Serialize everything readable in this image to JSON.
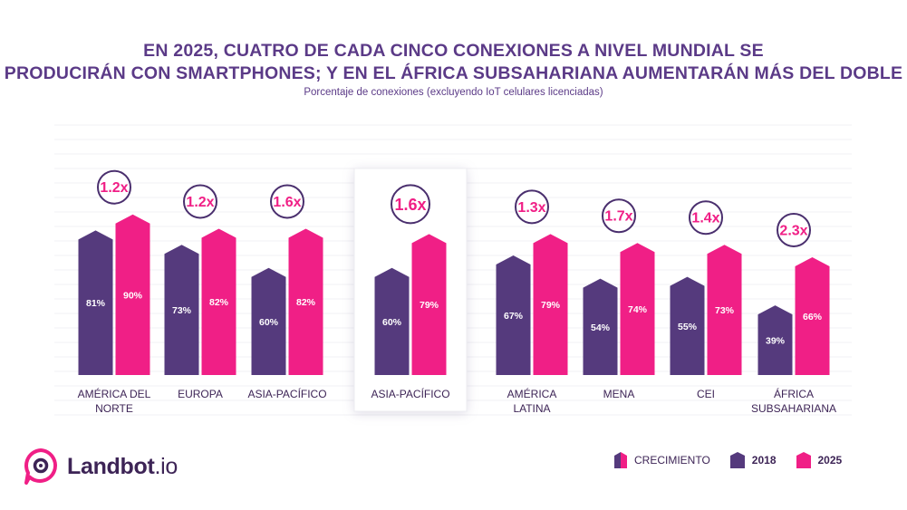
{
  "chart_data": {
    "type": "bar",
    "title": "EN 2025, CUATRO DE CADA CINCO CONEXIONES A NIVEL MUNDIAL SE PRODUCIRÁN CON SMARTPHONES; Y EN EL ÁFRICA SUBSAHARIANA AUMENTARÁN MÁS DEL DOBLE",
    "title_lines": [
      "EN 2025, CUATRO DE CADA CINCO CONEXIONES A NIVEL MUNDIAL SE",
      "PRODUCIRÁN CON SMARTPHONES; Y EN EL ÁFRICA SUBSAHARIANA AUMENTARÁN MÁS DEL DOBLE"
    ],
    "subtitle": "Porcentaje de conexiones (excluyendo IoT celulares licenciadas)",
    "categories": [
      [
        "AMÉRICA DEL",
        "NORTE"
      ],
      [
        "EUROPA"
      ],
      [
        "ASIA-PACÍFICO"
      ],
      [
        "ASIA-PACÍFICO"
      ],
      [
        "AMÉRICA",
        "LATINA"
      ],
      [
        "MENA"
      ],
      [
        "CEI"
      ],
      [
        "ÁFRICA",
        "SUBSAHARIANA"
      ]
    ],
    "series": [
      {
        "name": "2018",
        "color": "#553a7d",
        "values": [
          81,
          73,
          60,
          60,
          67,
          54,
          55,
          39
        ],
        "labels": [
          "81%",
          "73%",
          "60%",
          "60%",
          "67%",
          "54%",
          "55%",
          "39%"
        ]
      },
      {
        "name": "2025",
        "color": "#f01f86",
        "values": [
          90,
          82,
          82,
          79,
          79,
          74,
          73,
          66
        ],
        "labels": [
          "90%",
          "82%",
          "82%",
          "79%",
          "79%",
          "74%",
          "73%",
          "66%"
        ]
      }
    ],
    "growth": [
      "1.2x",
      "1.2x",
      "1.6x",
      "1.6x",
      "1.3x",
      "1.7x",
      "1.4x",
      "2.3x"
    ],
    "highlighted_index": 3,
    "ylim": [
      0,
      100
    ],
    "grid": true,
    "legend": [
      {
        "label": "CRECIMIENTO",
        "type": "combo"
      },
      {
        "label": "2018",
        "type": "solid",
        "color": "#553a7d"
      },
      {
        "label": "2025",
        "type": "solid",
        "color": "#f01f86"
      }
    ],
    "legend_position": "bottom-right"
  },
  "brand": {
    "name": "Landbot",
    "tld": ".io",
    "accent": "#f01f86",
    "dark": "#553a7d",
    "text_dark": "#3d2456",
    "title_color": "#5b3a87",
    "bubble_stroke": "#4a2f6e"
  }
}
